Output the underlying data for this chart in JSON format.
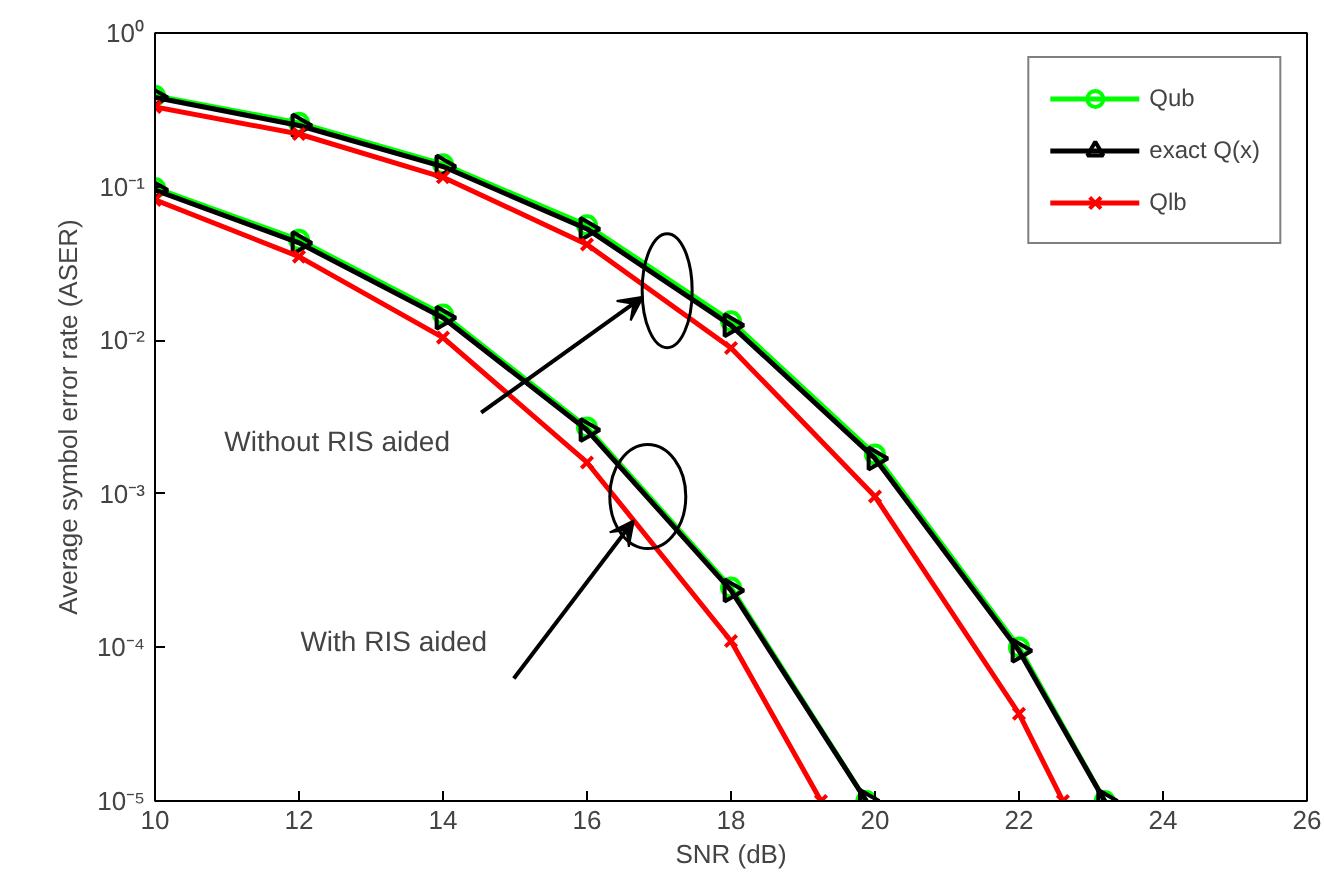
{
  "chart_data": {
    "type": "line",
    "xlabel": "SNR (dB)",
    "ylabel": "Average symbol error rate (ASER)",
    "log": "y",
    "xlim": [
      10,
      26
    ],
    "xticks": [
      10,
      12,
      14,
      16,
      18,
      20,
      22,
      24,
      26
    ],
    "ylim": [
      1e-05,
      1
    ],
    "yticks": [
      {
        "value": 1e-05,
        "label": "10⁻⁵"
      },
      {
        "value": 0.0001,
        "label": "10⁻⁴"
      },
      {
        "value": 0.001,
        "label": "10⁻³"
      },
      {
        "value": 0.01,
        "label": "10⁻²"
      },
      {
        "value": 0.1,
        "label": "10⁻¹"
      },
      {
        "value": 1,
        "label": "10⁰"
      }
    ],
    "grid": false,
    "legend": "top right",
    "line_style": "solid",
    "series": [
      {
        "name": "Qub",
        "color": "#00ff00",
        "marker": "circle",
        "x": [
          10,
          12,
          14,
          16,
          18,
          20,
          22,
          23.19
        ],
        "values": [
          0.39,
          0.26,
          0.14,
          0.056,
          0.0133,
          0.0018,
          0.0001,
          1e-05
        ]
      },
      {
        "name": "exact Q(x)",
        "color": "#000000",
        "marker": "triangle",
        "x": [
          10,
          12,
          14,
          16,
          18,
          20,
          22,
          23.19
        ],
        "values": [
          0.38,
          0.25,
          0.135,
          0.053,
          0.0125,
          0.0017,
          9.5e-05,
          1e-05
        ]
      },
      {
        "name": "Qlb",
        "color": "#ff0000",
        "marker": "cross",
        "x": [
          10,
          12,
          14,
          16,
          18,
          20,
          22,
          22.61
        ],
        "values": [
          0.33,
          0.22,
          0.115,
          0.042,
          0.0089,
          0.00096,
          3.7e-05,
          1e-05
        ]
      },
      {
        "color": "#00ff00",
        "marker": "circle",
        "x": [
          10,
          12,
          14,
          16,
          18,
          19.88
        ],
        "values": [
          0.098,
          0.045,
          0.0147,
          0.0027,
          0.000245,
          1e-05
        ]
      },
      {
        "color": "#000000",
        "marker": "triangle",
        "x": [
          10,
          12,
          14,
          16,
          18,
          19.88
        ],
        "values": [
          0.095,
          0.043,
          0.014,
          0.0026,
          0.000235,
          1e-05
        ]
      },
      {
        "color": "#ff0000",
        "marker": "cross",
        "x": [
          10,
          12,
          14,
          16,
          18,
          19.25
        ],
        "values": [
          0.082,
          0.035,
          0.0104,
          0.0016,
          0.00011,
          1e-05
        ]
      }
    ],
    "annotations": [
      {
        "text": "Without RIS aided",
        "x": 16.78,
        "y": 0.0192
      },
      {
        "text": "With RIS aided",
        "x": 16.65,
        "y": 0.00067
      }
    ]
  }
}
